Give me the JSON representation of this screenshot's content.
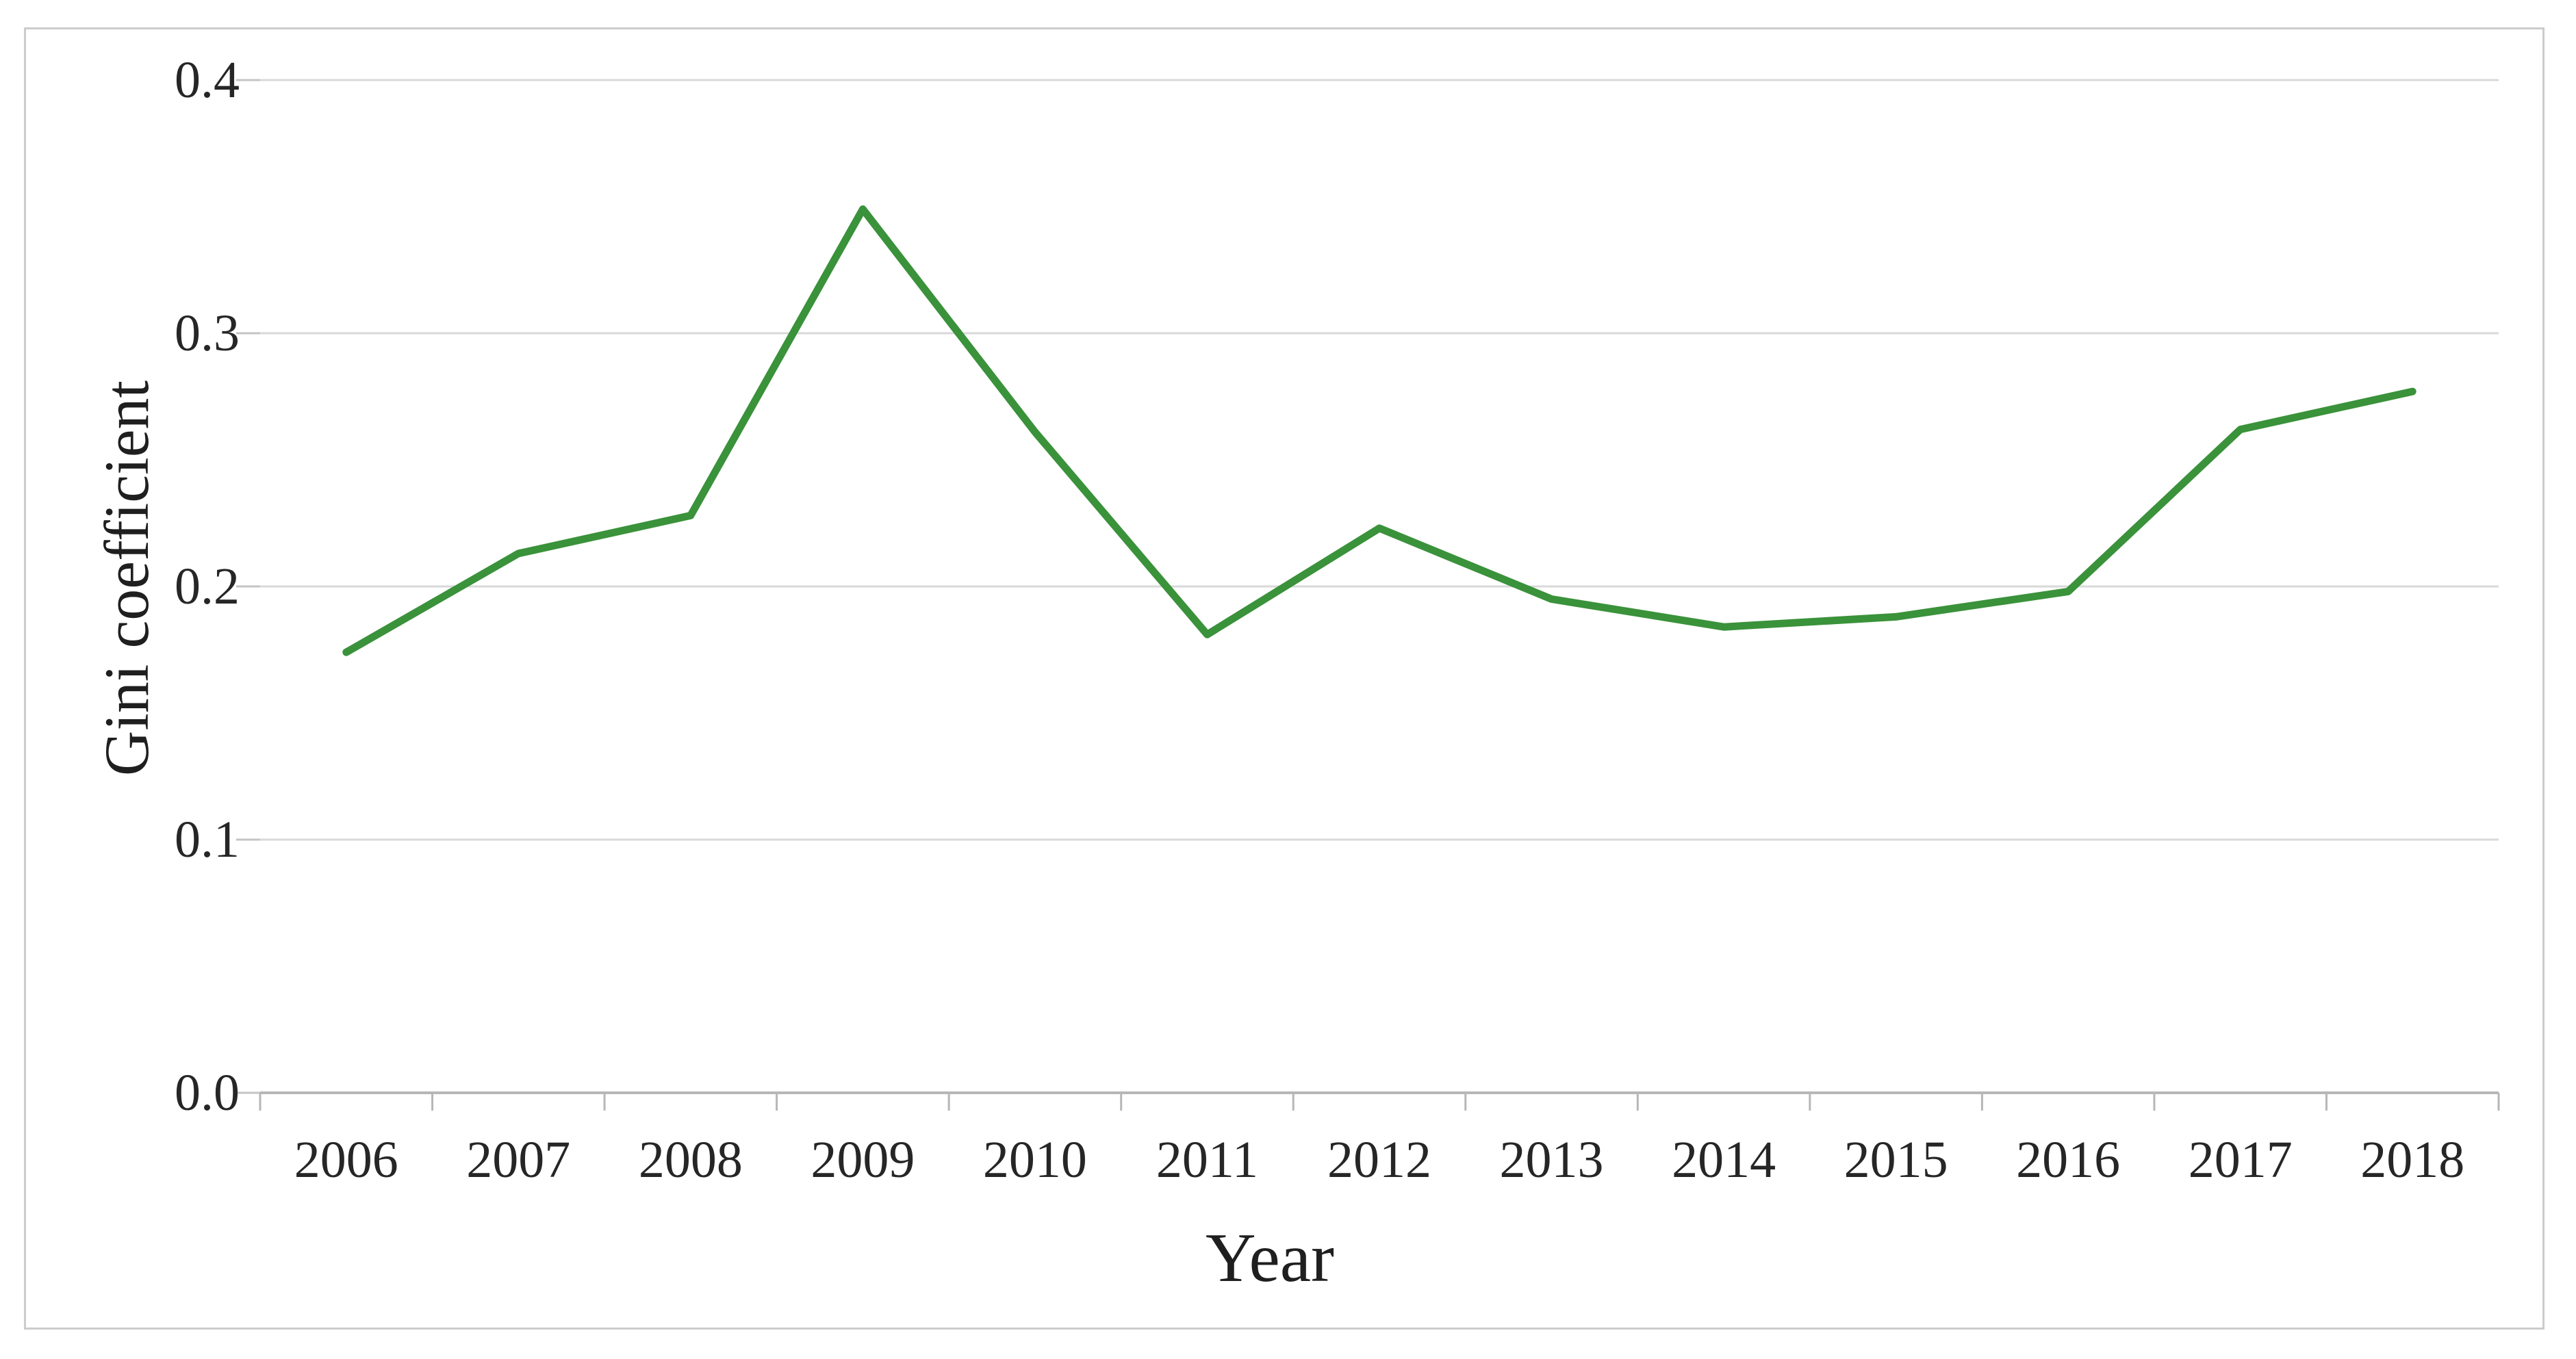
{
  "chart_data": {
    "type": "line",
    "xlabel": "Year",
    "ylabel": "Gini coefficient",
    "categories": [
      "2006",
      "2007",
      "2008",
      "2009",
      "2010",
      "2011",
      "2012",
      "2013",
      "2014",
      "2015",
      "2016",
      "2017",
      "2018"
    ],
    "series": [
      {
        "name": "Gini coefficient",
        "values": [
          0.174,
          0.213,
          0.228,
          0.349,
          0.261,
          0.181,
          0.223,
          0.195,
          0.184,
          0.188,
          0.198,
          0.262,
          0.277
        ]
      }
    ],
    "ylim": [
      0.0,
      0.4
    ],
    "y_tick_labels": [
      "0.0",
      "0.1",
      "0.2",
      "0.3",
      "0.4"
    ],
    "grid": "horizontal",
    "legend": "none",
    "colors": {
      "line": "#3a923a",
      "gridline": "#d9d9d9",
      "axis_line": "#b7b7b7",
      "tick_mark": "#c4c4c4",
      "text": "#262626",
      "figure_border": "#cccccc"
    }
  }
}
